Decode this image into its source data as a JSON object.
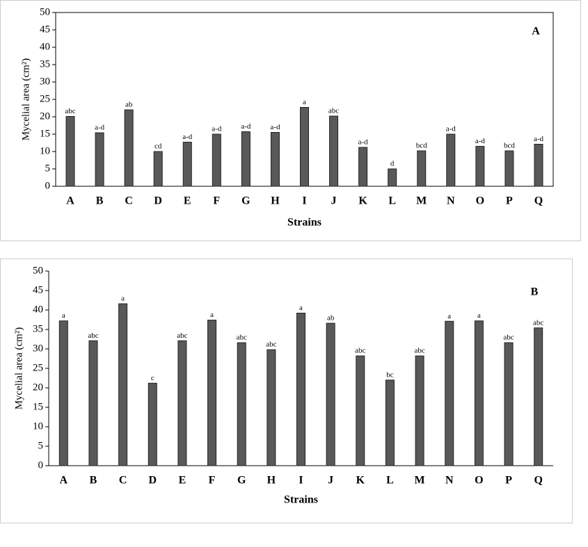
{
  "chart_data": [
    {
      "type": "bar",
      "panel_label": "A",
      "ylabel": "Mycelial area (cm²)",
      "xlabel": "Strains",
      "categories": [
        "A",
        "B",
        "C",
        "D",
        "E",
        "F",
        "G",
        "H",
        "I",
        "J",
        "K",
        "L",
        "M",
        "N",
        "O",
        "P",
        "Q"
      ],
      "values": [
        20.1,
        15.4,
        22,
        10,
        12.7,
        15,
        15.7,
        15.5,
        22.7,
        20.2,
        11.2,
        5,
        10.2,
        15,
        11.5,
        10.2,
        12.1
      ],
      "annotations": [
        "abc",
        "a-d",
        "ab",
        "cd",
        "a-d",
        "a-d",
        "a-d",
        "a-d",
        "a",
        "abc",
        "a-d",
        "d",
        "bcd",
        "a-d",
        "a-d",
        "bcd",
        "a-d"
      ],
      "color": "#595959",
      "ylim": [
        0,
        50
      ],
      "yticks": [
        0,
        5,
        10,
        15,
        20,
        25,
        30,
        35,
        40,
        45,
        50
      ]
    },
    {
      "type": "bar",
      "panel_label": "B",
      "ylabel": "Mycelial area (cm²)",
      "xlabel": "Strains",
      "categories": [
        "A",
        "B",
        "C",
        "D",
        "E",
        "F",
        "G",
        "H",
        "I",
        "J",
        "K",
        "L",
        "M",
        "N",
        "O",
        "P",
        "Q"
      ],
      "values": [
        37.2,
        32.1,
        41.6,
        21.2,
        32.1,
        37.4,
        31.6,
        29.8,
        39.2,
        36.6,
        28.2,
        22,
        28.2,
        37.1,
        37.2,
        31.6,
        35.4
      ],
      "annotations": [
        "a",
        "abc",
        "a",
        "c",
        "abc",
        "a",
        "abc",
        "abc",
        "a",
        "ab",
        "abc",
        "bc",
        "abc",
        "a",
        "a",
        "abc",
        "abc"
      ],
      "color": "#595959",
      "ylim": [
        0,
        50
      ],
      "yticks": [
        0,
        5,
        10,
        15,
        20,
        25,
        30,
        35,
        40,
        45,
        50
      ]
    }
  ]
}
